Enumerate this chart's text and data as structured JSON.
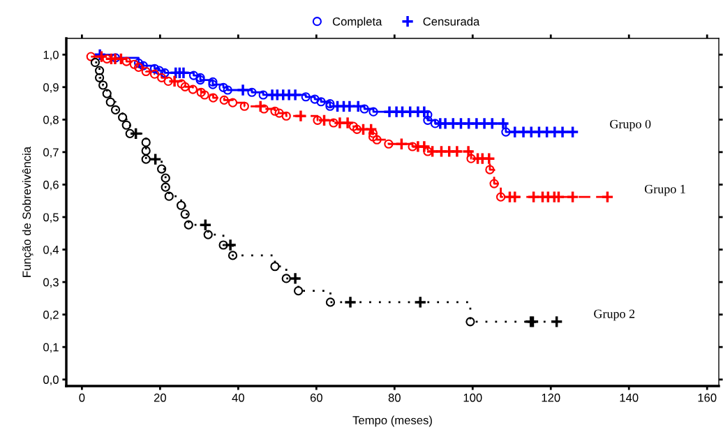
{
  "chart_data": {
    "type": "step",
    "xlabel": "Tempo (meses)",
    "ylabel": "Função de Sobrevivência",
    "xlim": [
      -4,
      163
    ],
    "ylim": [
      -0.02,
      1.05
    ],
    "xticks": [
      0,
      20,
      40,
      60,
      80,
      100,
      120,
      140,
      160
    ],
    "yticks": [
      {
        "value": 0,
        "label": "0,0"
      },
      {
        "value": 0.1,
        "label": "0,1"
      },
      {
        "value": 0.2,
        "label": "0,2"
      },
      {
        "value": 0.3,
        "label": "0,3"
      },
      {
        "value": 0.4,
        "label": "0,4"
      },
      {
        "value": 0.5,
        "label": "0,5"
      },
      {
        "value": 0.6,
        "label": "0,6"
      },
      {
        "value": 0.7,
        "label": "0,7"
      },
      {
        "value": 0.8,
        "label": "0,8"
      },
      {
        "value": 0.9,
        "label": "0,9"
      },
      {
        "value": 1.0,
        "label": "1,0"
      }
    ],
    "grid": false,
    "legend": "top",
    "annotations": [
      "Grupo 0",
      "Grupo 1",
      "Grupo 2"
    ],
    "series": [
      {
        "color": "#0000ff",
        "line_style": "solid",
        "marker": "none",
        "x": [
          4.6,
          8.6,
          14.5,
          15.7,
          18.6,
          19.8,
          21.2,
          28.6,
          30.3,
          30.3,
          33.5,
          33.5,
          36.2,
          37.3,
          43.5,
          46.4,
          57.3,
          59.6,
          61.2,
          63.5,
          63.5,
          72.3,
          74.6,
          88.5,
          88.5,
          90.4,
          108.5,
          125.6
        ],
        "values": [
          1.0,
          0.99,
          0.974,
          0.966,
          0.957,
          0.951,
          0.944,
          0.936,
          0.929,
          0.922,
          0.916,
          0.908,
          0.899,
          0.891,
          0.884,
          0.876,
          0.87,
          0.863,
          0.855,
          0.849,
          0.841,
          0.833,
          0.824,
          0.815,
          0.798,
          0.788,
          0.762,
          0.762
        ]
      },
      {
        "color": "#ff0000",
        "line_style": "dashed",
        "marker": "none",
        "x": [
          2.3,
          6.4,
          11.4,
          13.4,
          14.5,
          16.4,
          18.6,
          20.4,
          22.1,
          25.5,
          26.4,
          28.4,
          30.5,
          31.4,
          33.6,
          36.4,
          38.6,
          41.6,
          46.6,
          49.4,
          50.5,
          52.3,
          60.3,
          64.4,
          69.5,
          70.4,
          74.5,
          74.5,
          75.5,
          78.5,
          84.6,
          88.5,
          99.6,
          104.4,
          105.5,
          107.2,
          134.5
        ],
        "values": [
          0.994,
          0.987,
          0.979,
          0.97,
          0.961,
          0.948,
          0.94,
          0.929,
          0.918,
          0.91,
          0.901,
          0.893,
          0.884,
          0.876,
          0.867,
          0.86,
          0.852,
          0.841,
          0.833,
          0.826,
          0.82,
          0.811,
          0.798,
          0.79,
          0.779,
          0.77,
          0.758,
          0.747,
          0.738,
          0.725,
          0.717,
          0.702,
          0.68,
          0.646,
          0.603,
          0.562,
          0.562
        ]
      },
      {
        "color": "#000000",
        "line_style": "dotted",
        "marker": "none",
        "x": [
          3.4,
          4.5,
          4.5,
          5.4,
          6.4,
          7.3,
          8.6,
          10.4,
          11.4,
          12.3,
          16.4,
          16.4,
          16.4,
          20.4,
          21.4,
          21.4,
          22.3,
          25.4,
          26.4,
          27.3,
          32.3,
          36.2,
          38.6,
          49.4,
          52.3,
          55.4,
          63.6,
          99.4,
          121.5
        ],
        "values": [
          0.976,
          0.951,
          0.929,
          0.906,
          0.88,
          0.854,
          0.83,
          0.807,
          0.783,
          0.757,
          0.73,
          0.704,
          0.678,
          0.648,
          0.62,
          0.592,
          0.564,
          0.536,
          0.509,
          0.476,
          0.446,
          0.414,
          0.382,
          0.348,
          0.311,
          0.273,
          0.238,
          0.178,
          0.178
        ]
      },
      {
        "type": "scatter",
        "name": "Completa",
        "color": "#0000ff",
        "marker": "circle",
        "x": [
          8.6,
          14.5,
          15.7,
          18.6,
          19.8,
          21.2,
          28.6,
          30.3,
          30.3,
          33.5,
          33.5,
          36.2,
          37.3,
          43.5,
          46.4,
          57.3,
          59.6,
          61.2,
          63.5,
          63.5,
          72.3,
          74.6,
          88.5,
          88.5,
          90.4,
          108.5
        ],
        "values": [
          0.99,
          0.974,
          0.966,
          0.957,
          0.951,
          0.944,
          0.936,
          0.929,
          0.922,
          0.916,
          0.908,
          0.899,
          0.891,
          0.884,
          0.876,
          0.87,
          0.863,
          0.855,
          0.849,
          0.841,
          0.833,
          0.824,
          0.815,
          0.798,
          0.788,
          0.762
        ]
      },
      {
        "type": "scatter",
        "name": "Censurada",
        "color": "#0000ff",
        "marker": "cross",
        "x": [
          4.6,
          24,
          25,
          26,
          41.2,
          48.7,
          50,
          51.5,
          53,
          54.6,
          65.4,
          67,
          68.5,
          70.7,
          78.7,
          80.5,
          82,
          84,
          86,
          87.6,
          91.7,
          93,
          95,
          97,
          99,
          101,
          103,
          105,
          107.8,
          110.8,
          113,
          115,
          117,
          119,
          121,
          123,
          125.6
        ],
        "values": [
          1.0,
          0.944,
          0.944,
          0.944,
          0.891,
          0.876,
          0.876,
          0.876,
          0.876,
          0.876,
          0.841,
          0.841,
          0.841,
          0.841,
          0.824,
          0.824,
          0.824,
          0.824,
          0.824,
          0.824,
          0.788,
          0.788,
          0.788,
          0.788,
          0.788,
          0.788,
          0.788,
          0.788,
          0.788,
          0.762,
          0.762,
          0.762,
          0.762,
          0.762,
          0.762,
          0.762,
          0.762
        ]
      },
      {
        "type": "scatter",
        "color": "#ff0000",
        "marker": "circle",
        "x": [
          2.3,
          6.4,
          11.4,
          13.4,
          14.5,
          16.4,
          18.6,
          20.4,
          22.1,
          25.5,
          26.4,
          28.4,
          30.5,
          31.4,
          33.6,
          36.4,
          38.6,
          41.6,
          46.6,
          49.4,
          50.5,
          52.3,
          60.3,
          64.4,
          69.5,
          70.4,
          74.5,
          74.5,
          75.5,
          78.5,
          84.6,
          88.5,
          99.6,
          104.4,
          105.5,
          107.2
        ],
        "values": [
          0.994,
          0.987,
          0.979,
          0.97,
          0.961,
          0.948,
          0.94,
          0.929,
          0.918,
          0.91,
          0.901,
          0.893,
          0.884,
          0.876,
          0.867,
          0.86,
          0.852,
          0.841,
          0.833,
          0.826,
          0.82,
          0.811,
          0.798,
          0.79,
          0.779,
          0.77,
          0.758,
          0.747,
          0.738,
          0.725,
          0.717,
          0.702,
          0.68,
          0.646,
          0.603,
          0.562
        ]
      },
      {
        "type": "scatter",
        "color": "#ff0000",
        "marker": "cross",
        "x": [
          5,
          7.5,
          8.5,
          10,
          23.7,
          45.7,
          56,
          62,
          66,
          68,
          72,
          74,
          81.8,
          86,
          87.6,
          89.7,
          92,
          94,
          96,
          98.9,
          101.3,
          102.5,
          104.2,
          109.5,
          110.8,
          115.6,
          117.9,
          119.3,
          120.9,
          122,
          125.6,
          134.5
        ],
        "values": [
          0.994,
          0.987,
          0.987,
          0.987,
          0.918,
          0.841,
          0.811,
          0.798,
          0.79,
          0.79,
          0.77,
          0.77,
          0.725,
          0.717,
          0.717,
          0.702,
          0.702,
          0.702,
          0.702,
          0.702,
          0.68,
          0.68,
          0.68,
          0.562,
          0.562,
          0.562,
          0.562,
          0.562,
          0.562,
          0.562,
          0.562,
          0.562
        ]
      },
      {
        "type": "scatter",
        "color": "#000000",
        "marker": "circle",
        "x": [
          3.4,
          4.5,
          4.5,
          5.4,
          6.4,
          7.3,
          8.6,
          10.4,
          11.4,
          12.3,
          16.4,
          16.4,
          16.4,
          20.4,
          21.4,
          21.4,
          22.3,
          25.4,
          26.4,
          27.3,
          32.3,
          36.2,
          38.6,
          49.4,
          52.3,
          55.4,
          63.6,
          99.4
        ],
        "values": [
          0.976,
          0.951,
          0.929,
          0.906,
          0.88,
          0.854,
          0.83,
          0.807,
          0.783,
          0.757,
          0.73,
          0.704,
          0.678,
          0.648,
          0.62,
          0.592,
          0.564,
          0.536,
          0.509,
          0.476,
          0.446,
          0.414,
          0.382,
          0.348,
          0.311,
          0.273,
          0.238,
          0.178
        ]
      },
      {
        "type": "scatter",
        "color": "#000000",
        "marker": "cross",
        "x": [
          13.8,
          18.8,
          31.6,
          38,
          54.6,
          68.7,
          86.6,
          114.9,
          115.4,
          121.5
        ],
        "values": [
          0.757,
          0.678,
          0.476,
          0.414,
          0.311,
          0.238,
          0.238,
          0.178,
          0.178,
          0.178
        ]
      }
    ]
  }
}
